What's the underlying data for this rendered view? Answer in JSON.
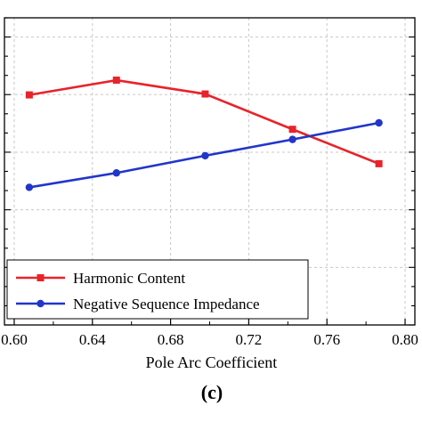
{
  "chart_data": {
    "type": "line",
    "title": "",
    "xlabel": "Pole Arc Coefficient",
    "ylabel": "",
    "panel_label": "(c)",
    "xlim": [
      0.595,
      0.805
    ],
    "xticks": [
      "0.60",
      "0.64",
      "0.68",
      "0.72",
      "0.76",
      "0.80"
    ],
    "y_plot_scale": [
      0,
      1
    ],
    "y_tick_count": 16,
    "grid": true,
    "legend_position": "bottom-left",
    "series": [
      {
        "name": "Harmonic Content",
        "color": "#e8232a",
        "marker": "square",
        "x": [
          0.6077,
          0.6523,
          0.6977,
          0.7424,
          0.7866
        ],
        "y": [
          0.749,
          0.797,
          0.752,
          0.637,
          0.525
        ]
      },
      {
        "name": "Negative Sequence Impedance",
        "color": "#2136c9",
        "marker": "circle",
        "x": [
          0.6077,
          0.6523,
          0.6977,
          0.7424,
          0.7866
        ],
        "y": [
          0.448,
          0.495,
          0.551,
          0.604,
          0.658
        ]
      }
    ]
  }
}
